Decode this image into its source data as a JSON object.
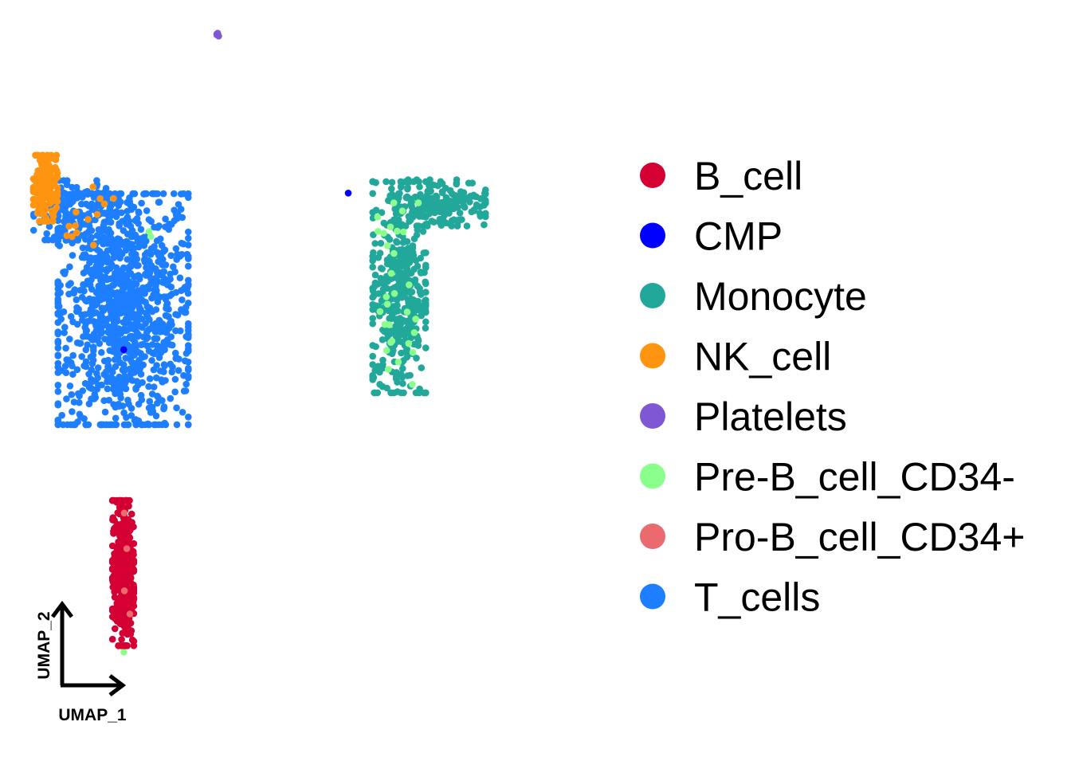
{
  "chart_data": {
    "type": "scatter",
    "title": "",
    "xlabel": "UMAP_1",
    "ylabel": "UMAP_2",
    "xlim": [
      -8,
      14
    ],
    "ylim": [
      -9,
      11
    ],
    "grid": false,
    "legend_position": "right",
    "colors": {
      "B_cell": "#D40034",
      "CMP": "#0000FF",
      "Monocyte": "#22A89A",
      "NK_cell": "#FF9411",
      "Platelets": "#7F57D5",
      "Pre-B_cell_CD34-": "#8BFF8B",
      "Pro-B_cell_CD34+": "#EA6A6D",
      "T_cells": "#1D7FFF"
    },
    "legend": [
      "B_cell",
      "CMP",
      "Monocyte",
      "NK_cell",
      "Platelets",
      "Pre-B_cell_CD34-",
      "Pro-B_cell_CD34+",
      "T_cells"
    ],
    "clusters": [
      {
        "name": "T_cells",
        "regions": [
          {
            "center": [
              -4.0,
              3.0
            ],
            "spread": [
              1.35,
              1.75
            ],
            "n": 1100
          },
          {
            "center": [
              -5.9,
              5.7
            ],
            "spread": [
              0.8,
              0.45
            ],
            "n": 140
          }
        ]
      },
      {
        "name": "NK_cell",
        "regions": [
          {
            "center": [
              -6.9,
              6.3
            ],
            "spread": [
              0.25,
              0.5
            ],
            "n": 150
          },
          {
            "center": [
              -5.8,
              5.6
            ],
            "spread": [
              0.8,
              0.5
            ],
            "n": 18
          }
        ]
      },
      {
        "name": "Monocyte",
        "regions": [
          {
            "center": [
              6.3,
              3.6
            ],
            "spread": [
              0.55,
              1.6
            ],
            "n": 420
          },
          {
            "center": [
              7.9,
              5.9
            ],
            "spread": [
              0.9,
              0.35
            ],
            "n": 160
          }
        ]
      },
      {
        "name": "Pre-B_cell_CD34-",
        "regions": [
          {
            "center": [
              6.3,
              3.2
            ],
            "spread": [
              0.45,
              1.5
            ],
            "n": 30
          },
          {
            "center": [
              -3.0,
              5.0
            ],
            "spread": [
              0.1,
              0.1
            ],
            "n": 2
          },
          {
            "center": [
              -4.0,
              -6.3
            ],
            "spread": [
              0.1,
              0.1
            ],
            "n": 1
          }
        ]
      },
      {
        "name": "B_cell",
        "regions": [
          {
            "center": [
              -4.0,
              -4.2
            ],
            "spread": [
              0.22,
              1.1
            ],
            "n": 380
          }
        ]
      },
      {
        "name": "Pro-B_cell_CD34+",
        "regions": [
          {
            "center": [
              -4.0,
              -4.0
            ],
            "spread": [
              0.15,
              0.8
            ],
            "n": 4
          }
        ]
      },
      {
        "name": "CMP",
        "regions": [
          {
            "center": [
              -4.0,
              1.9
            ],
            "spread": [
              0.02,
              0.02
            ],
            "n": 1
          },
          {
            "center": [
              4.4,
              6.1
            ],
            "spread": [
              0.05,
              0.05
            ],
            "n": 1
          }
        ]
      },
      {
        "name": "Platelets",
        "regions": [
          {
            "center": [
              -0.45,
              10.5
            ],
            "spread": [
              0.03,
              0.03
            ],
            "n": 4
          }
        ]
      }
    ]
  }
}
